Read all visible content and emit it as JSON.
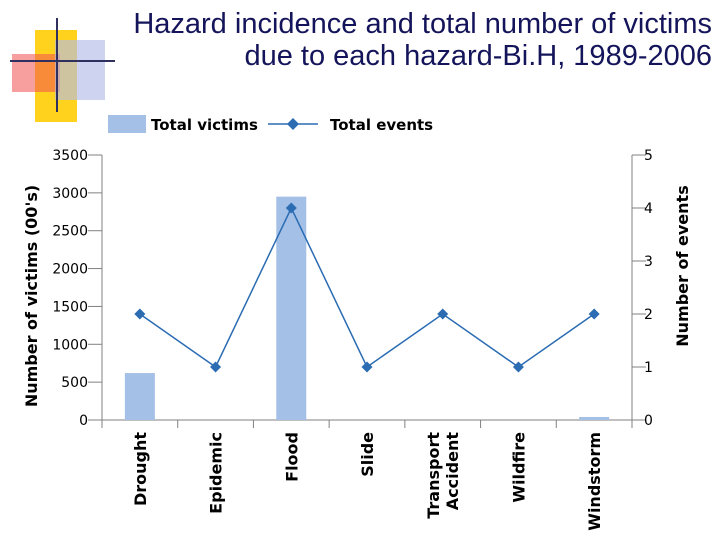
{
  "title": {
    "line1": "Hazard incidence and total number of victims",
    "line2": "due to each hazard-Bi.H, 1989-2006"
  },
  "colors": {
    "bar": "#a4c0e6",
    "line": "#2b6cb3",
    "title": "#14145a"
  },
  "chart_data": {
    "type": "bar",
    "categories": [
      "Drought",
      "Epidemic",
      "Flood",
      "Slide",
      "Transport Accident",
      "Wildfire",
      "Windstorm"
    ],
    "series": [
      {
        "name": "Total victims",
        "type": "bar",
        "axis": "left",
        "values": [
          620,
          0,
          2950,
          0,
          0,
          0,
          40
        ]
      },
      {
        "name": "Total events",
        "type": "line",
        "axis": "right",
        "values": [
          2,
          1,
          4,
          1,
          2,
          1,
          2
        ]
      }
    ],
    "ylabel": "Number of victims (00's)",
    "y2label": "Number of events",
    "ylim": [
      0,
      3500
    ],
    "y2lim": [
      0,
      5
    ],
    "yticks": [
      "0",
      "500",
      "1000",
      "1500",
      "2000",
      "2500",
      "3000",
      "3500"
    ],
    "y2ticks": [
      "0",
      "1",
      "2",
      "3",
      "4",
      "5"
    ],
    "legend_position": "top"
  }
}
